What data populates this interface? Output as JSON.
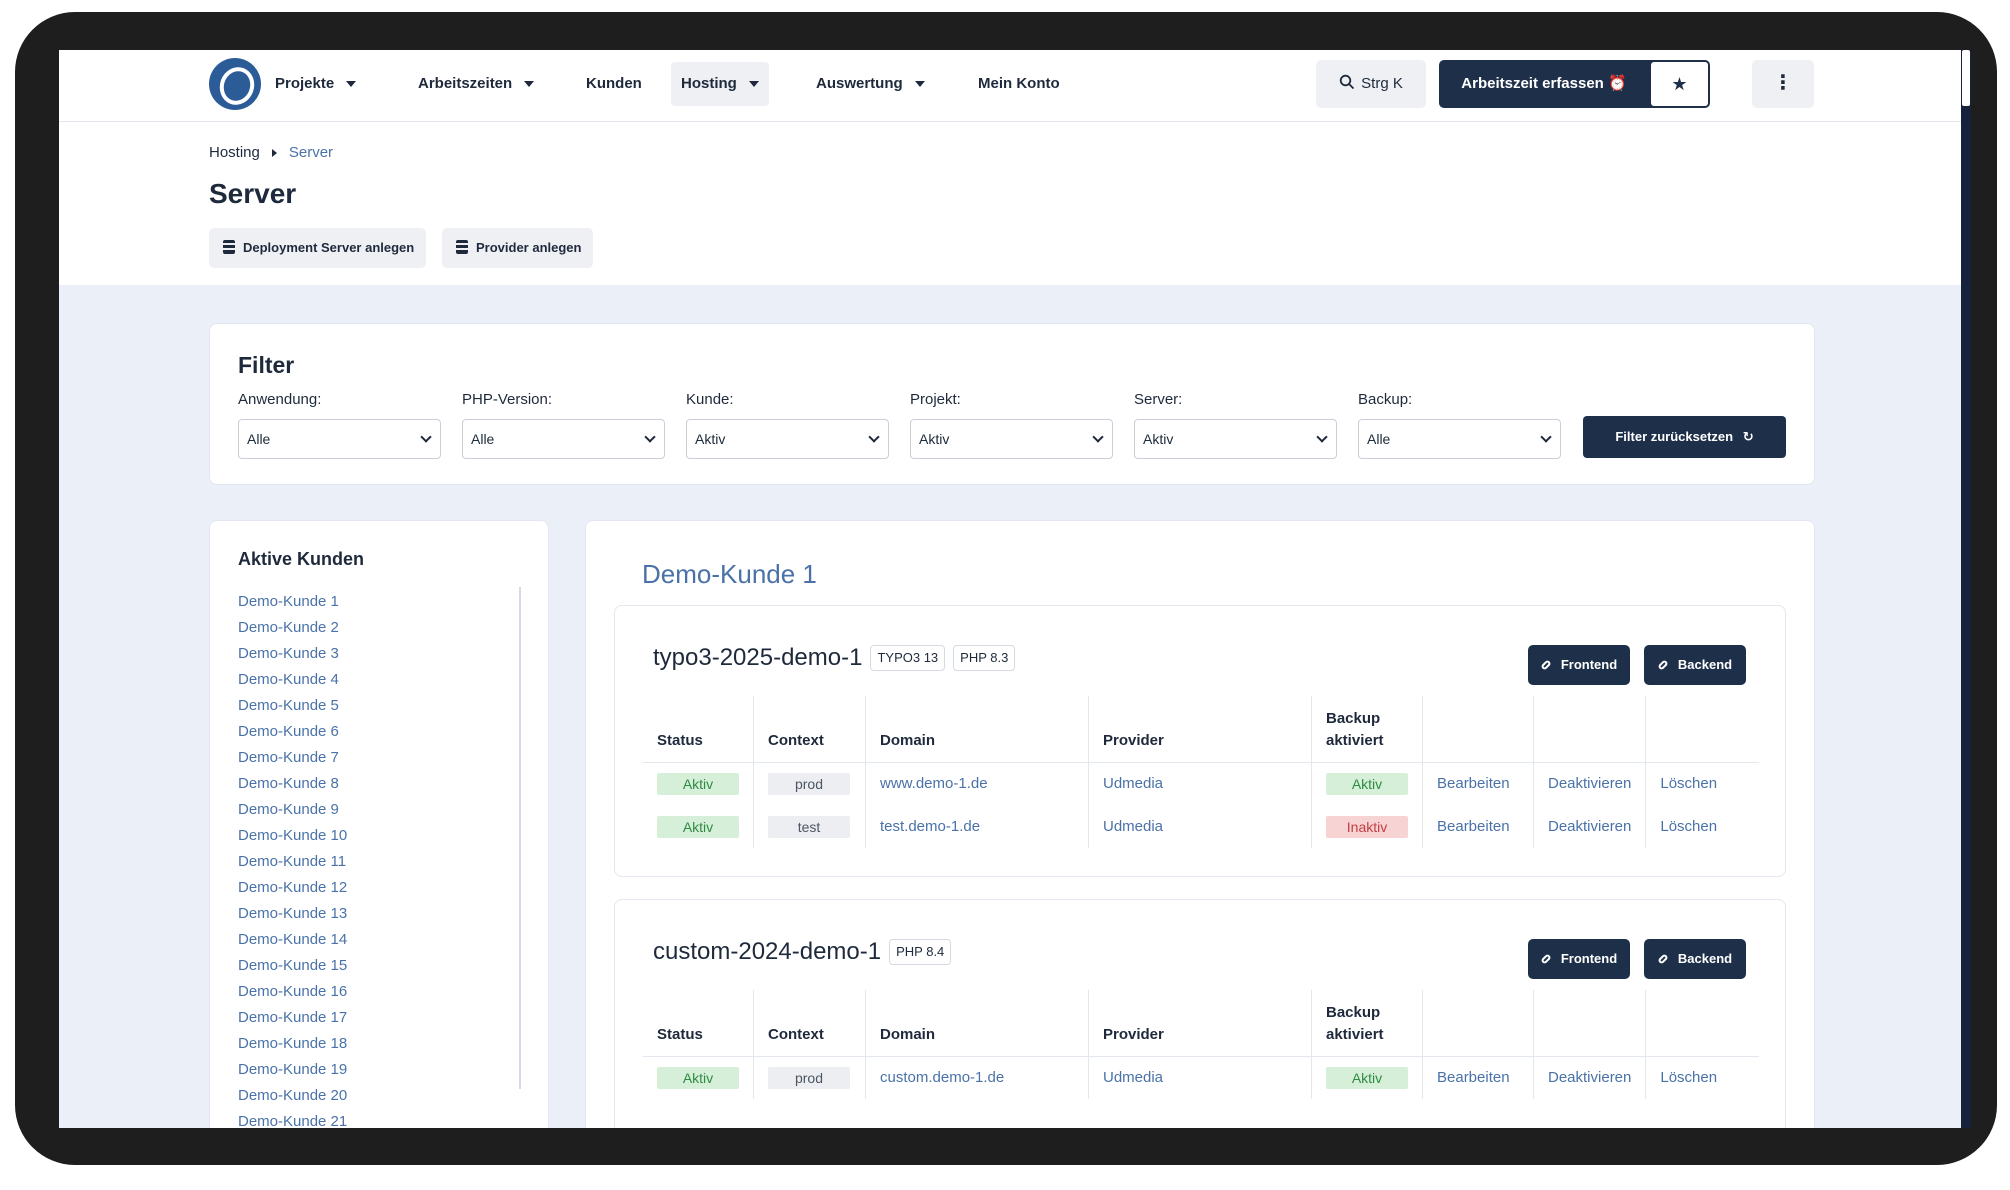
{
  "nav": {
    "items": [
      {
        "label": "Projekte",
        "dropdown": true
      },
      {
        "label": "Arbeitszeiten",
        "dropdown": true
      },
      {
        "label": "Kunden",
        "dropdown": false
      },
      {
        "label": "Hosting",
        "dropdown": true,
        "active": true
      },
      {
        "label": "Auswertung",
        "dropdown": true
      },
      {
        "label": "Mein Konto",
        "dropdown": false
      }
    ],
    "search_label": "Strg K",
    "work_button_label": "Arbeitszeit erfassen",
    "work_icon": "alarm-clock-icon",
    "star_icon": "star-icon",
    "more_icon": "vertical-dots-icon"
  },
  "header": {
    "breadcrumb": [
      "Hosting",
      "Server"
    ],
    "title": "Server",
    "buttons": [
      "Deployment Server anlegen",
      "Provider anlegen"
    ]
  },
  "filter": {
    "title": "Filter",
    "fields": [
      {
        "label": "Anwendung:",
        "value": "Alle"
      },
      {
        "label": "PHP-Version:",
        "value": "Alle"
      },
      {
        "label": "Kunde:",
        "value": "Aktiv"
      },
      {
        "label": "Projekt:",
        "value": "Aktiv"
      },
      {
        "label": "Server:",
        "value": "Aktiv"
      },
      {
        "label": "Backup:",
        "value": "Alle"
      }
    ],
    "reset_label": "Filter zurücksetzen"
  },
  "sidebar": {
    "title": "Aktive Kunden",
    "customers": [
      "Demo-Kunde 1",
      "Demo-Kunde 2",
      "Demo-Kunde 3",
      "Demo-Kunde 4",
      "Demo-Kunde 5",
      "Demo-Kunde 6",
      "Demo-Kunde 7",
      "Demo-Kunde 8",
      "Demo-Kunde 9",
      "Demo-Kunde 10",
      "Demo-Kunde 11",
      "Demo-Kunde 12",
      "Demo-Kunde 13",
      "Demo-Kunde 14",
      "Demo-Kunde 15",
      "Demo-Kunde 16",
      "Demo-Kunde 17",
      "Demo-Kunde 18",
      "Demo-Kunde 19",
      "Demo-Kunde 20",
      "Demo-Kunde 21"
    ]
  },
  "main": {
    "customer": "Demo-Kunde 1",
    "frontend_label": "Frontend",
    "backend_label": "Backend",
    "columns": {
      "status": "Status",
      "context": "Context",
      "domain": "Domain",
      "provider": "Provider",
      "backup": "Backup aktiviert"
    },
    "actions": {
      "edit": "Bearbeiten",
      "deactivate": "Deaktivieren",
      "delete": "Löschen"
    },
    "servers": [
      {
        "name": "typo3-2025-demo-1",
        "tags": [
          "TYPO3 13",
          "PHP 8.3"
        ],
        "rows": [
          {
            "status": "Aktiv",
            "context": "prod",
            "domain": "www.demo-1.de",
            "provider": "Udmedia",
            "backup": "Aktiv",
            "backup_state": "green"
          },
          {
            "status": "Aktiv",
            "context": "test",
            "domain": "test.demo-1.de",
            "provider": "Udmedia",
            "backup": "Inaktiv",
            "backup_state": "red"
          }
        ]
      },
      {
        "name": "custom-2024-demo-1",
        "tags": [
          "PHP 8.4"
        ],
        "rows": [
          {
            "status": "Aktiv",
            "context": "prod",
            "domain": "custom.demo-1.de",
            "provider": "Udmedia",
            "backup": "Aktiv",
            "backup_state": "green"
          }
        ]
      }
    ]
  },
  "colors": {
    "primary": "#1e2f4a",
    "link": "#4a72a8",
    "background": "#eaeff8"
  }
}
